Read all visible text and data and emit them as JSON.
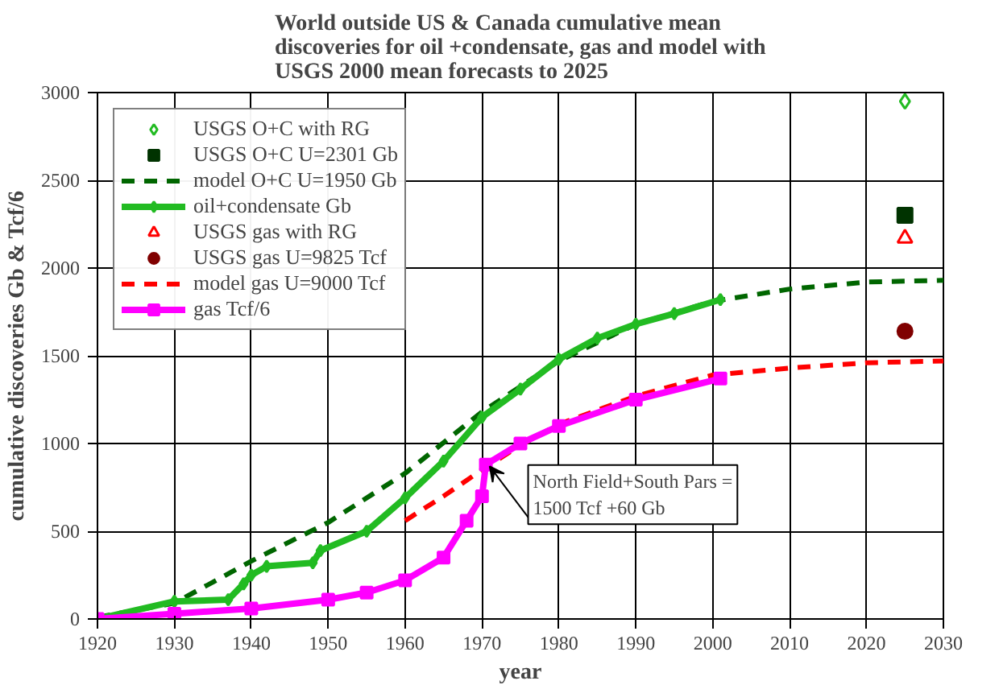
{
  "chart_data": {
    "type": "line",
    "title": "World outside US & Canada cumulative mean discoveries for oil +condensate, gas and model with USGS 2000 mean forecasts to 2025",
    "xlabel": "year",
    "ylabel": "cumulative discoveries Gb & Tcf/6",
    "xlim": [
      1920,
      2030
    ],
    "xticks": [
      1920,
      1930,
      1940,
      1950,
      1960,
      1970,
      1980,
      1990,
      2000,
      2010,
      2020,
      2030
    ],
    "ylim": [
      0,
      3000
    ],
    "yticks": [
      0,
      500,
      1000,
      1500,
      2000,
      2500,
      3000
    ],
    "grid": true,
    "legend": "top left",
    "annotations": [
      {
        "text": "North Field+South Pars = 1500 Tcf +60 Gb",
        "x": 1971,
        "y": 870
      }
    ],
    "series": [
      {
        "name": "USGS O+C with RG",
        "type": "scatter",
        "marker": "diamond",
        "color": "#22bb22",
        "x": [
          2025
        ],
        "values": [
          2950
        ]
      },
      {
        "name": "USGS O+C U=2301 Gb",
        "type": "scatter",
        "marker": "square",
        "color": "#003300",
        "x": [
          2025
        ],
        "values": [
          2300
        ]
      },
      {
        "name": "model O+C U=1950 Gb",
        "line_style": "dashed",
        "color": "#006600",
        "x": [
          1920,
          1930,
          1940,
          1950,
          1960,
          1970,
          1980,
          1990,
          2000,
          2010,
          2020,
          2030
        ],
        "values": [
          10,
          90,
          330,
          550,
          830,
          1180,
          1470,
          1680,
          1810,
          1880,
          1920,
          1930
        ]
      },
      {
        "name": "oil+condensate Gb",
        "marker": "diamond",
        "color": "#22bb22",
        "x": [
          1920,
          1930,
          1937,
          1939,
          1940,
          1942,
          1948,
          1949,
          1955,
          1960,
          1965,
          1970,
          1975,
          1980,
          1985,
          1990,
          1995,
          2001
        ],
        "values": [
          0,
          100,
          110,
          200,
          250,
          300,
          320,
          390,
          500,
          690,
          900,
          1150,
          1310,
          1480,
          1600,
          1680,
          1740,
          1820
        ]
      },
      {
        "name": "USGS gas with RG",
        "type": "scatter",
        "marker": "triangle",
        "color": "#ff0000",
        "x": [
          2025
        ],
        "values": [
          2170
        ]
      },
      {
        "name": "USGS gas U=9825 Tcf",
        "type": "scatter",
        "marker": "circle",
        "color": "#800000",
        "x": [
          2025
        ],
        "values": [
          1640
        ]
      },
      {
        "name": "model gas U=9000 Tcf",
        "line_style": "dashed",
        "color": "#ff0000",
        "x": [
          1960,
          1965,
          1970,
          1975,
          1980,
          1990,
          2000,
          2010,
          2020,
          2030
        ],
        "values": [
          560,
          700,
          850,
          990,
          1110,
          1270,
          1390,
          1430,
          1460,
          1470
        ]
      },
      {
        "name": "gas Tcf/6",
        "marker": "square",
        "color": "#ff00ff",
        "x": [
          1920,
          1930,
          1940,
          1950,
          1955,
          1960,
          1965,
          1968,
          1970,
          1970.5,
          1975,
          1980,
          1990,
          2001
        ],
        "values": [
          0,
          30,
          60,
          110,
          150,
          220,
          350,
          560,
          700,
          880,
          1000,
          1100,
          1250,
          1370
        ]
      }
    ]
  }
}
